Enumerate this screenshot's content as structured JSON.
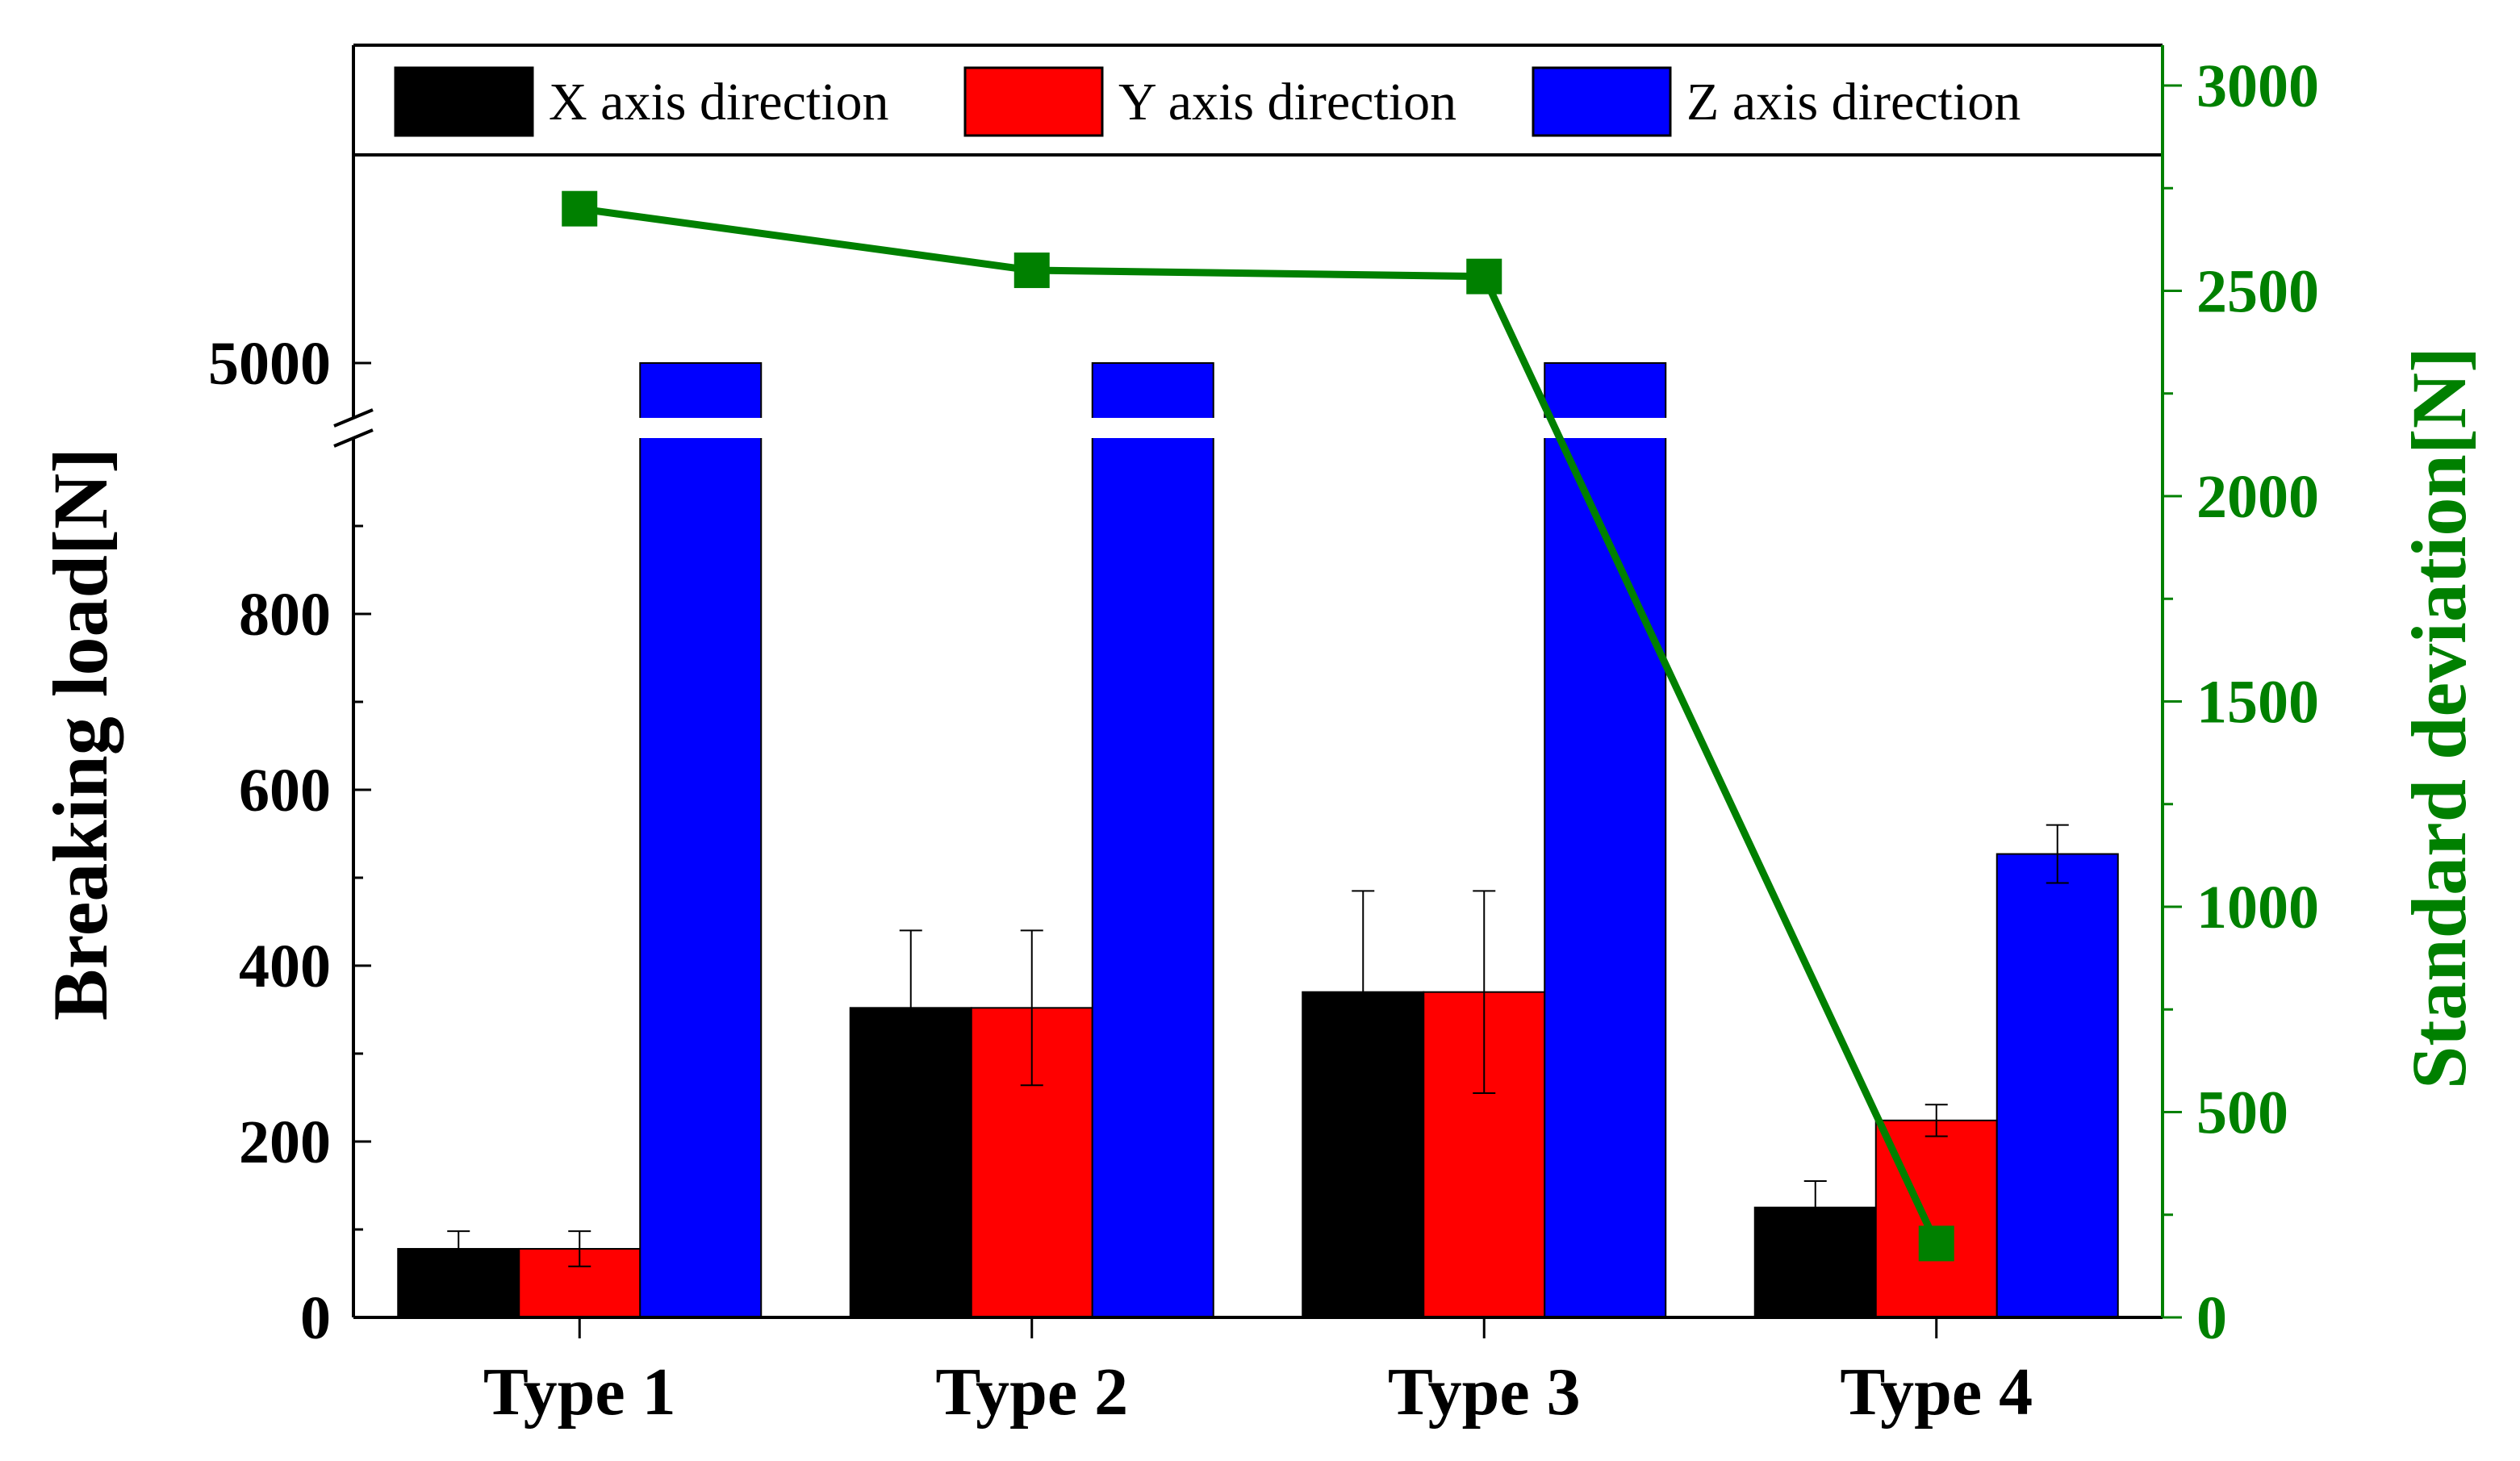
{
  "chart_data": {
    "type": "bar",
    "categories": [
      "Type 1",
      "Type 2",
      "Type 3",
      "Type 4"
    ],
    "series": [
      {
        "name": "X axis direction",
        "color": "#000000",
        "values": [
          78,
          352,
          370,
          125
        ],
        "errors": [
          20,
          88,
          115,
          30
        ]
      },
      {
        "name": "Y axis direction",
        "color": "#ff0000",
        "values": [
          78,
          352,
          370,
          224
        ],
        "errors": [
          20,
          88,
          115,
          18
        ]
      },
      {
        "name": "Z axis direction",
        "color": "#0000ff",
        "values": [
          5000,
          5000,
          5000,
          527
        ],
        "errors": [
          0,
          0,
          0,
          33
        ]
      }
    ],
    "line_series": {
      "name": "Standard deviation",
      "color": "#008000",
      "axis": "right",
      "values": [
        2700,
        2550,
        2535,
        180
      ]
    },
    "left_axis": {
      "label": "Breaking load[N]",
      "lower_range": [
        0,
        1000
      ],
      "lower_ticks": [
        0,
        200,
        400,
        600,
        800
      ],
      "upper_ticks": [
        5000
      ],
      "break_between": [
        1000,
        5000
      ]
    },
    "right_axis": {
      "label": "Standard deviation[N]",
      "range": [
        0,
        3000
      ],
      "ticks": [
        0,
        500,
        1000,
        1500,
        2000,
        2500,
        3000
      ],
      "color": "#008000"
    },
    "legend_position": "top"
  }
}
